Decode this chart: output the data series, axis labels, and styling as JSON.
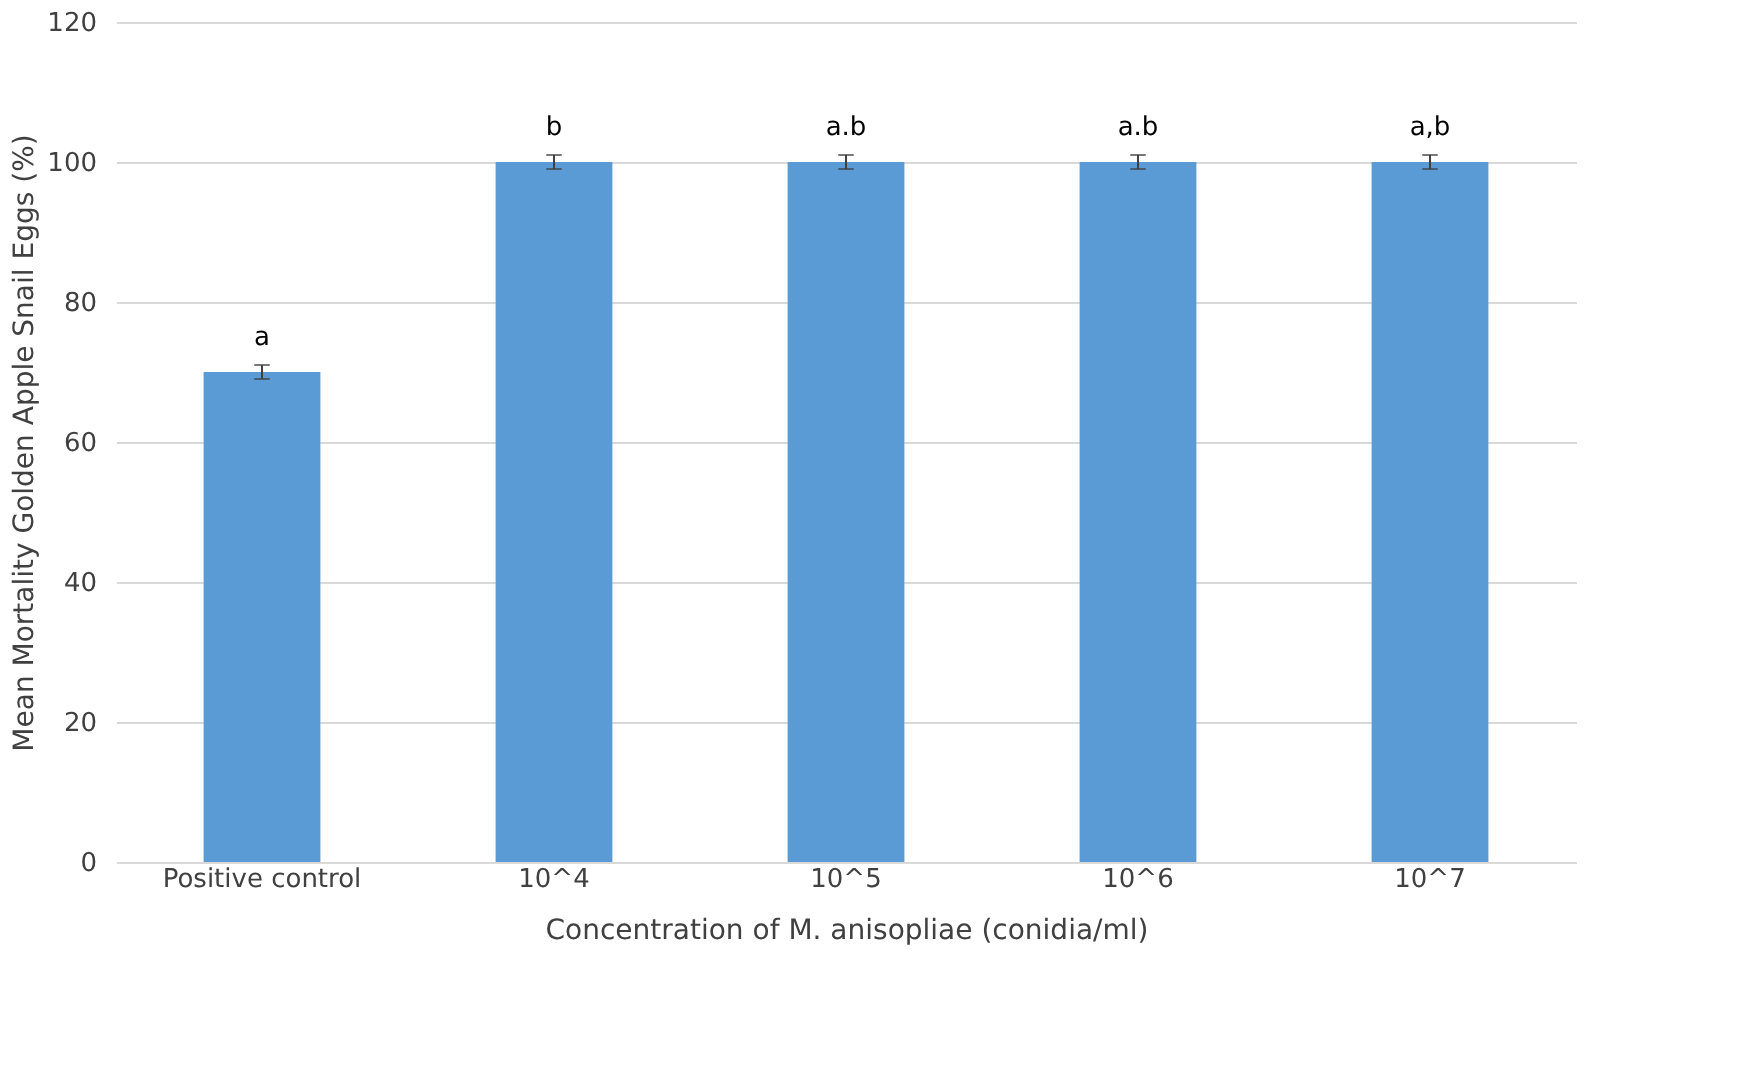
{
  "chart_data": {
    "type": "bar",
    "xlabel": "Concentration of M. anisopliae (conidia/ml)",
    "ylabel": "Mean Mortality Golden Apple Snail Eggs (%)",
    "categories": [
      "Positive control",
      "10^4",
      "10^5",
      "10^6",
      "10^7"
    ],
    "values": [
      70,
      100,
      100,
      100,
      100
    ],
    "errors": [
      1,
      1,
      1,
      1,
      1
    ],
    "color": "#5b9bd5",
    "ylim": [
      0,
      120
    ],
    "yticks": [
      0,
      20,
      40,
      60,
      80,
      100,
      120
    ],
    "grid": "y",
    "annotations": [
      {
        "text": "a",
        "x": "Positive control",
        "y": 71
      },
      {
        "text": "b",
        "x": "10^4",
        "y": 101
      },
      {
        "text": "a.b",
        "x": "10^5",
        "y": 101
      },
      {
        "text": "a.b",
        "x": "10^6",
        "y": 101
      },
      {
        "text": "a,b",
        "x": "10^7",
        "y": 101
      }
    ]
  }
}
